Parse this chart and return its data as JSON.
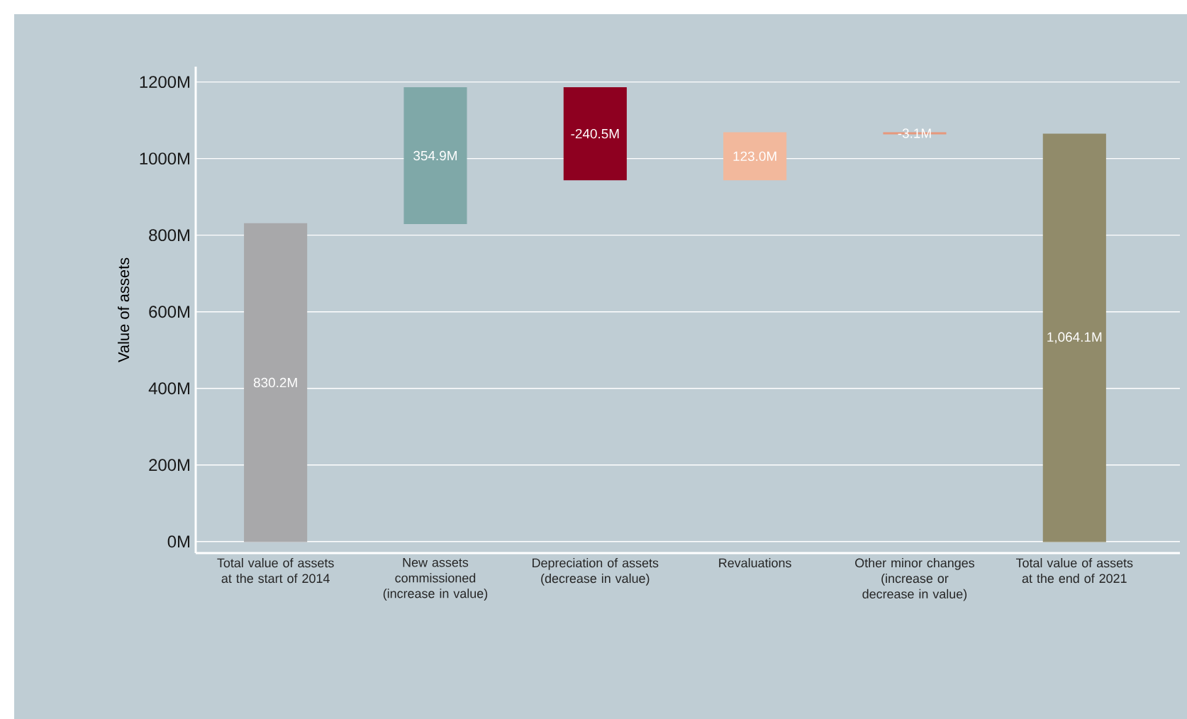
{
  "chart_data": {
    "type": "bar",
    "ylabel": "Value of assets",
    "categories": [
      "Total value of assets at the start of 2014",
      "New assets commissioned (increase in value)",
      "Depreciation of assets (decrease in value)",
      "Revaluations",
      "Other minor changes (increase or decrease in value)",
      "Total value of assets at the end of 2021"
    ],
    "values": [
      830.2,
      354.9,
      -240.5,
      123.0,
      -3.1,
      1064.1
    ],
    "base": [
      0,
      830.2,
      1185.1,
      944.6,
      1067.6,
      0
    ],
    "colors": [
      "#a8a8aa",
      "#7fa8a8",
      "#8e0020",
      "#f2b89c",
      "#e8967a",
      "#918b6a"
    ],
    "value_labels": [
      "830.2M",
      "354.9M",
      "-240.5M",
      "123.0M",
      "-3.1M",
      "1,064.1M"
    ],
    "ylim": [
      -30,
      1240
    ],
    "yticks": [
      {
        "value": 0,
        "label": "0M"
      },
      {
        "value": 200,
        "label": "200M"
      },
      {
        "value": 400,
        "label": "400M"
      },
      {
        "value": 600,
        "label": "600M"
      },
      {
        "value": 800,
        "label": "800M"
      },
      {
        "value": 1000,
        "label": "1000M"
      },
      {
        "value": 1200,
        "label": "1200M"
      }
    ],
    "grid": "y"
  }
}
